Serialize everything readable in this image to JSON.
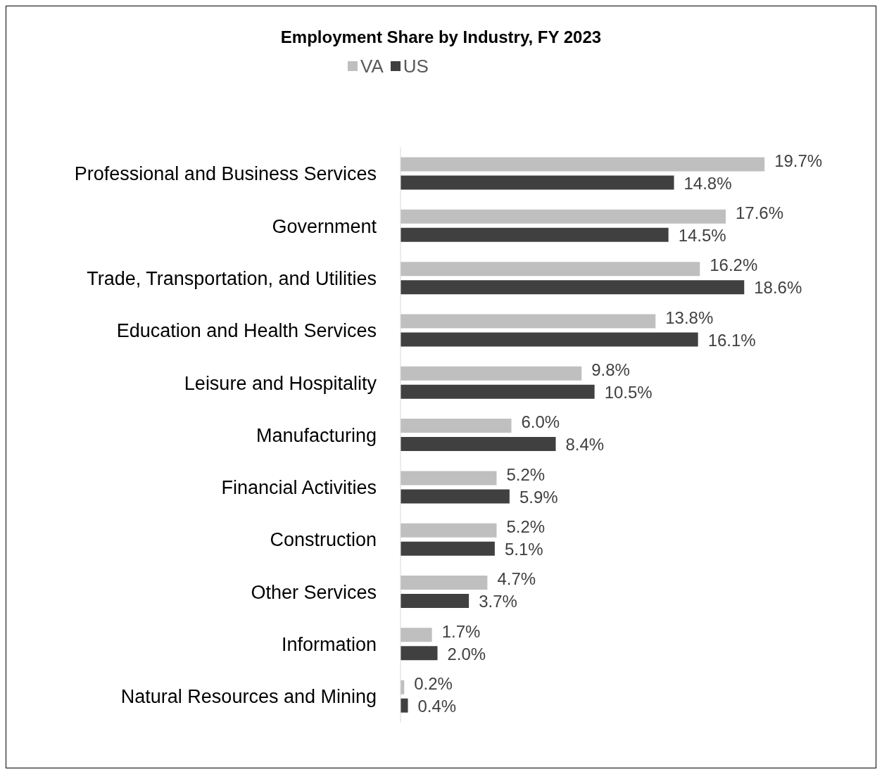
{
  "chart_data": {
    "type": "bar",
    "orientation": "horizontal",
    "title": "Employment Share by Industry, FY 2023",
    "categories": [
      "Professional and Business Services",
      "Government",
      "Trade, Transportation, and Utilities",
      "Education and Health Services",
      "Leisure and Hospitality",
      "Manufacturing",
      "Financial Activities",
      "Construction",
      "Other Services",
      "Information",
      "Natural Resources and Mining"
    ],
    "series": [
      {
        "name": "VA",
        "color": "#bfbfbf",
        "values": [
          19.7,
          17.6,
          16.2,
          13.8,
          9.8,
          6.0,
          5.2,
          5.2,
          4.7,
          1.7,
          0.2
        ],
        "value_labels": [
          "19.7%",
          "17.6%",
          "16.2%",
          "13.8%",
          "9.8%",
          "6.0%",
          "5.2%",
          "5.2%",
          "4.7%",
          "1.7%",
          "0.2%"
        ]
      },
      {
        "name": "US",
        "color": "#404040",
        "values": [
          14.8,
          14.5,
          18.6,
          16.1,
          10.5,
          8.4,
          5.9,
          5.1,
          3.7,
          2.0,
          0.4
        ],
        "value_labels": [
          "14.8%",
          "14.5%",
          "18.6%",
          "16.1%",
          "10.5%",
          "8.4%",
          "5.9%",
          "5.1%",
          "3.7%",
          "2.0%",
          "0.4%"
        ]
      }
    ],
    "legend": "top",
    "grid": false
  }
}
